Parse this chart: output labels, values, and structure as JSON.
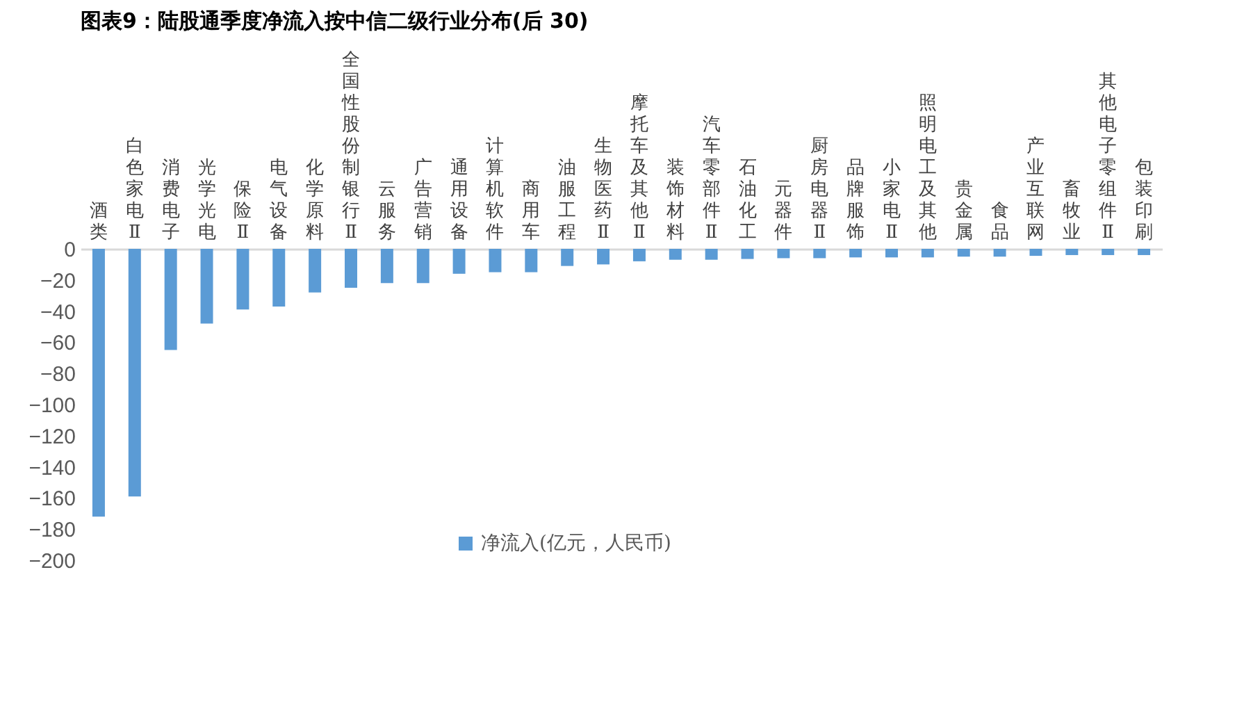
{
  "chart_data": {
    "type": "bar",
    "title": "图表9：陆股通季度净流入按中信二级行业分布(后 30)",
    "categories": [
      "酒类",
      "白色家电Ⅱ",
      "消费电子",
      "光学光电",
      "保险Ⅱ",
      "电气设备",
      "化学原料",
      "全国性股份制银行Ⅱ",
      "云服务",
      "广告营销",
      "通用设备",
      "计算机软件",
      "商用车",
      "油服工程",
      "生物医药Ⅱ",
      "摩托车及其他Ⅱ",
      "装饰材料",
      "汽车零部件Ⅱ",
      "石油化工",
      "元器件",
      "厨房电器Ⅱ",
      "品牌服饰",
      "小家电Ⅱ",
      "照明电工及其他",
      "贵金属",
      "食品",
      "产业互联网",
      "畜牧业",
      "其他电子零组件Ⅱ",
      "包装印刷"
    ],
    "series": [
      {
        "name": "净流入(亿元，人民币)",
        "color": "#5b9bd5",
        "values": [
          -172,
          -159,
          -65,
          -48,
          -39,
          -37,
          -28,
          -25,
          -22,
          -22,
          -16,
          -15,
          -15,
          -11,
          -10,
          -8,
          -7,
          -7,
          -6.5,
          -6,
          -6,
          -5.5,
          -5.5,
          -5.5,
          -5,
          -5,
          -4.5,
          -4,
          -4,
          -4
        ]
      }
    ],
    "ylim": [
      -200,
      0
    ],
    "yticks": [
      -200,
      -180,
      -160,
      -140,
      -120,
      -100,
      -80,
      -60,
      -40,
      -20,
      0
    ],
    "grid": false,
    "legend": "bottom"
  }
}
